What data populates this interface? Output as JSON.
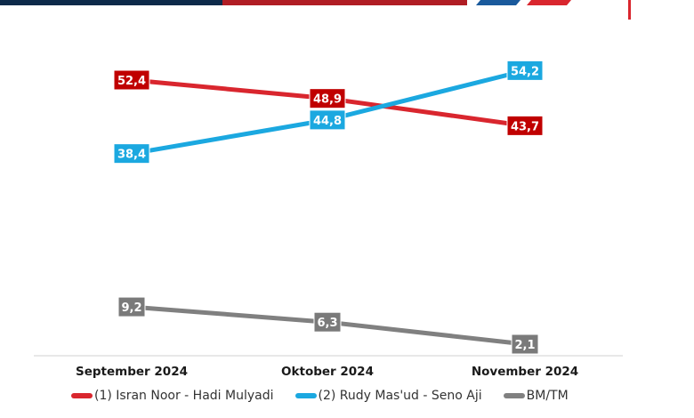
{
  "chart_data": {
    "type": "line",
    "title": "",
    "xlabel": "",
    "ylabel": "",
    "categories": [
      "September 2024",
      "Oktober 2024",
      "November 2024"
    ],
    "series": [
      {
        "name": "(1) Isran Noor - Hadi Mulyadi",
        "color": "#d9262e",
        "label_color": "#c00000",
        "values": [
          52.4,
          48.9,
          43.7
        ],
        "labels": [
          "52,4",
          "48,9",
          "43,7"
        ]
      },
      {
        "name": "(2) Rudy Mas'ud - Seno Aji",
        "color": "#1ba8e0",
        "label_color": "#1ba8e0",
        "values": [
          38.4,
          44.8,
          54.2
        ],
        "labels": [
          "38,4",
          "44,8",
          "54,2"
        ]
      },
      {
        "name": "BM/TM",
        "color": "#808080",
        "label_color": "#7a7a7a",
        "values": [
          9.2,
          6.3,
          2.1
        ],
        "labels": [
          "9,2",
          "6,3",
          "2,1"
        ]
      }
    ],
    "ylim": [
      0,
      60
    ],
    "grid": false,
    "legend_position": "bottom"
  },
  "banner_colors": {
    "blue": "#1a5a9c",
    "red": "#d9262e",
    "dark": "#0d2a4a"
  }
}
